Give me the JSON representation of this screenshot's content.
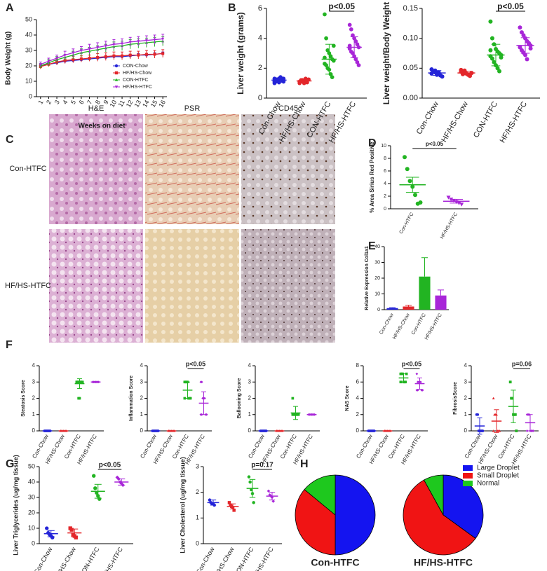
{
  "panel_labels": [
    "A",
    "B",
    "C",
    "D",
    "E",
    "F",
    "G",
    "H"
  ],
  "micrographs": {
    "columns": [
      "H&E",
      "PSR",
      "CD45"
    ],
    "rows": [
      "Con-HTFC",
      "HF/HS-HTFC"
    ]
  },
  "chart_data": [
    {
      "type": "line",
      "xlabel": "Weeks on diet",
      "ylabel": "Body Weight (g)",
      "legend": "lower right",
      "x": [
        1,
        2,
        3,
        4,
        5,
        6,
        7,
        8,
        9,
        10,
        11,
        12,
        13,
        14,
        15,
        16
      ],
      "xlim": [
        0.5,
        16.5
      ],
      "xticks": [
        1,
        2,
        3,
        4,
        5,
        6,
        7,
        8,
        9,
        10,
        11,
        12,
        13,
        14,
        15,
        16
      ],
      "ylim": [
        0,
        50
      ],
      "yticks": [
        0,
        10,
        20,
        30,
        40,
        50
      ],
      "series": [
        {
          "name": "CON-Chow",
          "color": "#2424d8",
          "marker": "circle",
          "values": [
            20,
            21,
            22,
            23,
            23.5,
            24,
            24.5,
            25,
            25.5,
            26,
            26,
            26.5,
            27,
            27,
            27.5,
            28
          ],
          "errors": [
            1,
            1,
            1,
            1,
            1,
            1,
            1,
            1,
            1,
            1,
            1,
            1,
            1,
            1,
            1,
            1
          ]
        },
        {
          "name": "HF/HS-Chow",
          "color": "#e3262a",
          "marker": "square",
          "values": [
            19.5,
            21,
            22.5,
            23.5,
            24,
            24.5,
            25,
            25.5,
            26,
            26.5,
            26.5,
            27,
            27,
            27.5,
            27.5,
            28
          ],
          "errors": [
            1.5,
            1.5,
            2,
            2,
            2,
            2,
            2,
            2.5,
            2.5,
            2.5,
            2.5,
            2.5,
            2.5,
            2.5,
            2.5,
            2.5
          ]
        },
        {
          "name": "CON-HTFC",
          "color": "#22b422",
          "marker": "triangle",
          "values": [
            20,
            22,
            24,
            25.5,
            27,
            28.5,
            29.5,
            30.5,
            31.5,
            32.5,
            33,
            34,
            34.5,
            35,
            35.5,
            36
          ],
          "errors": [
            1.5,
            2,
            2,
            2,
            2.5,
            2.5,
            2.5,
            2.5,
            2.5,
            3,
            3,
            3,
            3,
            3,
            3,
            3
          ]
        },
        {
          "name": "HF/HS-HTFC",
          "color": "#a826d8",
          "marker": "tri-down",
          "values": [
            21,
            23,
            25,
            27,
            28.5,
            30,
            31,
            32,
            33,
            34,
            34.5,
            35.5,
            36,
            36.5,
            37,
            37.5
          ],
          "errors": [
            1.5,
            2,
            2,
            2.5,
            2.5,
            2.5,
            3,
            3,
            3,
            3,
            3,
            3,
            3,
            3,
            3,
            3
          ]
        }
      ]
    },
    {
      "type": "dot",
      "ylabel": "Liver weight (grams)",
      "categories": [
        "Con-Chow",
        "HF/HS-Chow",
        "CON-HTFC",
        "HF/HS-HTFC"
      ],
      "ylim": [
        0,
        6
      ],
      "yticks": [
        0,
        2,
        4,
        6
      ],
      "annotation": "p<0.05",
      "groups": [
        {
          "color": "#2424d8",
          "marker": "circle",
          "points": [
            1.0,
            1.1,
            1.2,
            1.3,
            1.4,
            1.2,
            1.1,
            1.3,
            1.25,
            1.15,
            1.05,
            1.35,
            1.2,
            1.3,
            1.1
          ],
          "mean": 1.2,
          "sd": 0.15
        },
        {
          "color": "#e3262a",
          "marker": "circle",
          "points": [
            1.0,
            1.1,
            1.2,
            1.15,
            1.3,
            1.05,
            1.25,
            1.1,
            1.2,
            1.15,
            1.0,
            1.2
          ],
          "mean": 1.15,
          "sd": 0.1
        },
        {
          "color": "#22b422",
          "marker": "circle",
          "points": [
            5.6,
            4.0,
            3.2,
            3.0,
            2.8,
            2.6,
            2.5,
            2.3,
            2.2,
            2.0,
            1.9,
            1.6,
            1.4,
            3.5,
            2.7
          ],
          "mean": 2.6,
          "sd": 1.0
        },
        {
          "color": "#a826d8",
          "marker": "circle",
          "points": [
            4.9,
            4.6,
            4.2,
            4.0,
            3.8,
            3.6,
            3.4,
            3.3,
            3.1,
            3.0,
            2.8,
            2.6,
            2.4,
            2.2,
            3.5
          ],
          "mean": 3.4,
          "sd": 0.7
        }
      ]
    },
    {
      "type": "dot",
      "ylabel": "Liver weight/Body Weight",
      "categories": [
        "Con-Chow",
        "HF/HS-Chow",
        "CON-HTFC",
        "HF/HS-HTFC"
      ],
      "ylim": [
        0,
        0.15
      ],
      "yticks": [
        {
          "value": 0,
          "label": "0.00"
        },
        0.05,
        {
          "value": 0.1,
          "label": "0.10"
        },
        0.15
      ],
      "annotation": "p<0.05",
      "groups": [
        {
          "color": "#2424d8",
          "marker": "circle",
          "points": [
            0.048,
            0.045,
            0.043,
            0.042,
            0.04,
            0.038,
            0.036,
            0.041,
            0.044,
            0.046,
            0.039,
            0.043
          ],
          "mean": 0.042,
          "sd": 0.004
        },
        {
          "color": "#e3262a",
          "marker": "circle",
          "points": [
            0.047,
            0.045,
            0.043,
            0.041,
            0.039,
            0.037,
            0.042,
            0.044,
            0.04,
            0.046
          ],
          "mean": 0.042,
          "sd": 0.003
        },
        {
          "color": "#22b422",
          "marker": "circle",
          "points": [
            0.128,
            0.1,
            0.09,
            0.082,
            0.078,
            0.075,
            0.072,
            0.07,
            0.066,
            0.06,
            0.055,
            0.05,
            0.045,
            0.068,
            0.08
          ],
          "mean": 0.072,
          "sd": 0.018
        },
        {
          "color": "#a826d8",
          "marker": "circle",
          "points": [
            0.118,
            0.11,
            0.105,
            0.1,
            0.095,
            0.09,
            0.088,
            0.085,
            0.08,
            0.076,
            0.072,
            0.065,
            0.092,
            0.083
          ],
          "mean": 0.088,
          "sd": 0.013
        }
      ]
    },
    {
      "type": "dot",
      "ylabel": "% Area Sirius Red Positive",
      "categories": [
        "Con-HTFC",
        "HF/HS-HTFC"
      ],
      "ylim": [
        0,
        10
      ],
      "yticks": [
        0,
        2,
        4,
        6,
        8,
        10
      ],
      "annotation": "p<0.05",
      "groups": [
        {
          "color": "#22b422",
          "marker": "circle",
          "points": [
            8.2,
            6.3,
            4.4,
            3.5,
            2.2,
            0.8,
            1.0
          ],
          "mean": 3.8,
          "sd": 1.2
        },
        {
          "color": "#a826d8",
          "marker": "tri-down",
          "points": [
            1.8,
            1.5,
            1.3,
            1.1,
            0.9,
            0.7
          ],
          "mean": 1.2,
          "sd": 0.3
        }
      ]
    },
    {
      "type": "bar",
      "ylabel": "Relative Expression Col1a1",
      "categories": [
        "Con-Chow",
        "HF/HS-Chow",
        "Con-HTFC",
        "HF/HS-HTFC"
      ],
      "values": [
        1,
        2,
        21,
        9
      ],
      "errors": [
        0.3,
        0.8,
        12,
        3.5
      ],
      "colors": [
        "#2424d8",
        "#e3262a",
        "#22b422",
        "#a826d8"
      ],
      "ylim": [
        0,
        40
      ],
      "yticks": [
        0,
        10,
        20,
        30,
        40
      ]
    },
    {
      "type": "dot",
      "ylabel": "Steatosis Score",
      "categories": [
        "Con-Chow",
        "HF/HS-Chow",
        "Con-HTFC",
        "HF/HS-HTFC"
      ],
      "ylim": [
        0,
        4
      ],
      "yticks": [
        0,
        1,
        2,
        3,
        4
      ],
      "groups": [
        {
          "color": "#2424d8",
          "marker": "circle",
          "points": [
            0,
            0,
            0,
            0,
            0,
            0,
            0
          ],
          "mean": 0,
          "sd": 0
        },
        {
          "color": "#e3262a",
          "marker": "triangle",
          "points": [
            0,
            0,
            0,
            0,
            0,
            0,
            0,
            0
          ],
          "mean": 0,
          "sd": 0
        },
        {
          "color": "#22b422",
          "marker": "square",
          "points": [
            3,
            3,
            3,
            3,
            3,
            3,
            3,
            3,
            3,
            2,
            2,
            3
          ],
          "mean": 2.9,
          "sd": 0.3
        },
        {
          "color": "#a826d8",
          "marker": "diamond",
          "points": [
            3,
            3,
            3,
            3,
            3,
            3,
            3,
            3
          ],
          "mean": 3,
          "sd": 0
        }
      ]
    },
    {
      "type": "dot",
      "ylabel": "Inflammation Score",
      "categories": [
        "Con-Chow",
        "HF/HS-Chow",
        "Con-HTFC",
        "HF/HS-HTFC"
      ],
      "ylim": [
        0,
        4
      ],
      "yticks": [
        0,
        1,
        2,
        3,
        4
      ],
      "annotation": "p<0.05",
      "groups": [
        {
          "color": "#2424d8",
          "marker": "circle",
          "points": [
            0,
            0,
            0,
            0,
            0,
            0,
            0
          ],
          "mean": 0,
          "sd": 0
        },
        {
          "color": "#e3262a",
          "marker": "triangle",
          "points": [
            0,
            0,
            0,
            0,
            0,
            0,
            0,
            0
          ],
          "mean": 0,
          "sd": 0
        },
        {
          "color": "#22b422",
          "marker": "square",
          "points": [
            3,
            3,
            3,
            3,
            2,
            2,
            2,
            2
          ],
          "mean": 2.5,
          "sd": 0.5
        },
        {
          "color": "#a826d8",
          "marker": "diamond",
          "points": [
            3,
            3,
            2,
            2,
            2,
            1,
            1,
            1,
            1
          ],
          "mean": 1.7,
          "sd": 0.7
        }
      ]
    },
    {
      "type": "dot",
      "ylabel": "Ballooning Score",
      "categories": [
        "Con-Chow",
        "HF/HS-Chow",
        "Con-HTFC",
        "HF/HS-HTFC"
      ],
      "ylim": [
        0,
        4
      ],
      "yticks": [
        0,
        1,
        2,
        3,
        4
      ],
      "groups": [
        {
          "color": "#2424d8",
          "marker": "circle",
          "points": [
            0,
            0,
            0,
            0,
            0,
            0,
            0
          ],
          "mean": 0,
          "sd": 0
        },
        {
          "color": "#e3262a",
          "marker": "triangle",
          "points": [
            0,
            0,
            0,
            0,
            0,
            0,
            0,
            0
          ],
          "mean": 0,
          "sd": 0
        },
        {
          "color": "#22b422",
          "marker": "square",
          "points": [
            2,
            1,
            1,
            1,
            1,
            1,
            1,
            1
          ],
          "mean": 1.1,
          "sd": 0.4
        },
        {
          "color": "#a826d8",
          "marker": "diamond",
          "points": [
            1,
            1,
            1,
            1,
            1,
            1,
            1,
            1
          ],
          "mean": 1,
          "sd": 0
        }
      ]
    },
    {
      "type": "dot",
      "ylabel": "NAS Score",
      "categories": [
        "Con-Chow",
        "HF/HS-Chow",
        "Con-HTFC",
        "HF/HS-HTFC"
      ],
      "ylim": [
        0,
        8
      ],
      "yticks": [
        0,
        2,
        4,
        6,
        8
      ],
      "annotation": "p<0.05",
      "groups": [
        {
          "color": "#2424d8",
          "marker": "circle",
          "points": [
            0,
            0,
            0,
            0,
            0,
            0,
            0
          ],
          "mean": 0,
          "sd": 0
        },
        {
          "color": "#e3262a",
          "marker": "triangle",
          "points": [
            0,
            0,
            0,
            0,
            0,
            0,
            0,
            0
          ],
          "mean": 0,
          "sd": 0
        },
        {
          "color": "#22b422",
          "marker": "square",
          "points": [
            7,
            7,
            7,
            6,
            6,
            6,
            7,
            6
          ],
          "mean": 6.5,
          "sd": 0.5
        },
        {
          "color": "#a826d8",
          "marker": "diamond",
          "points": [
            7,
            6,
            6,
            6,
            6,
            5,
            5,
            5,
            5
          ],
          "mean": 5.8,
          "sd": 0.7
        }
      ]
    },
    {
      "type": "dot",
      "ylabel": "FibrosisScore",
      "categories": [
        "Con-Chow",
        "HF/HS-Chow",
        "Con-HTFC",
        "HF/HS-HTFC"
      ],
      "ylim": [
        0,
        4
      ],
      "yticks": [
        0,
        1,
        2,
        3,
        4
      ],
      "annotation": "p=0.06",
      "groups": [
        {
          "color": "#2424d8",
          "marker": "circle",
          "points": [
            1,
            1,
            0,
            0,
            0,
            0,
            0
          ],
          "mean": 0.3,
          "sd": 0.5
        },
        {
          "color": "#e3262a",
          "marker": "triangle",
          "points": [
            2,
            1,
            1,
            1,
            0,
            0,
            0,
            0
          ],
          "mean": 0.6,
          "sd": 0.7
        },
        {
          "color": "#22b422",
          "marker": "square",
          "points": [
            3,
            2,
            2,
            1,
            1,
            1,
            0
          ],
          "mean": 1.5,
          "sd": 1.0
        },
        {
          "color": "#a826d8",
          "marker": "diamond",
          "points": [
            1,
            1,
            1,
            0,
            0,
            0,
            0,
            0
          ],
          "mean": 0.5,
          "sd": 0.5
        }
      ]
    },
    {
      "type": "dot",
      "ylabel": "Liver Triglycerides (ug/mg tissue)",
      "categories": [
        "Con-Chow",
        "HF/HS-Chow",
        "CON-HTFC",
        "HF/HS-HTFC"
      ],
      "ylim": [
        0,
        50
      ],
      "yticks": [
        0,
        10,
        20,
        30,
        40,
        50
      ],
      "annotation": "p<0.05",
      "groups": [
        {
          "color": "#2424d8",
          "marker": "circle",
          "points": [
            10,
            7,
            6,
            5,
            4
          ],
          "mean": 6.5,
          "sd": 2
        },
        {
          "color": "#e3262a",
          "marker": "square",
          "points": [
            10,
            9,
            6,
            5,
            4
          ],
          "mean": 7,
          "sd": 2.5
        },
        {
          "color": "#22b422",
          "marker": "circle",
          "points": [
            44,
            36,
            33,
            31,
            29
          ],
          "mean": 34,
          "sd": 4.5
        },
        {
          "color": "#a826d8",
          "marker": "diamond",
          "points": [
            43,
            42,
            40,
            39,
            38
          ],
          "mean": 40,
          "sd": 2
        }
      ]
    },
    {
      "type": "dot",
      "ylabel": "Liver Cholesterol (ug/mg tissue)",
      "categories": [
        "Con-Chow",
        "HF/HS-Chow",
        "CON-HTFC",
        "HF/HS-HTFC"
      ],
      "ylim": [
        0,
        3
      ],
      "yticks": [
        0,
        1,
        2,
        3
      ],
      "annotation": "p=0.17",
      "groups": [
        {
          "color": "#2424d8",
          "marker": "circle",
          "points": [
            1.7,
            1.6,
            1.55,
            1.55,
            1.5
          ],
          "mean": 1.6,
          "sd": 0.1
        },
        {
          "color": "#e3262a",
          "marker": "square",
          "points": [
            1.6,
            1.5,
            1.45,
            1.4,
            1.3
          ],
          "mean": 1.45,
          "sd": 0.1
        },
        {
          "color": "#22b422",
          "marker": "circle",
          "points": [
            2.6,
            2.4,
            2.1,
            1.95,
            1.6
          ],
          "mean": 2.15,
          "sd": 0.35
        },
        {
          "color": "#a826d8",
          "marker": "diamond",
          "points": [
            2.05,
            1.9,
            1.85,
            1.8,
            1.65
          ],
          "mean": 1.85,
          "sd": 0.15
        }
      ]
    },
    {
      "type": "pie",
      "categories": [
        "Large Droplet",
        "Small Droplet",
        "Normal"
      ],
      "colors": [
        "#1414f0",
        "#f01414",
        "#1ec81e"
      ],
      "series": [
        {
          "name": "Con-HTFC",
          "values": [
            50,
            36,
            14
          ]
        },
        {
          "name": "HF/HS-HTFC",
          "values": [
            35,
            57,
            8
          ]
        }
      ]
    }
  ]
}
